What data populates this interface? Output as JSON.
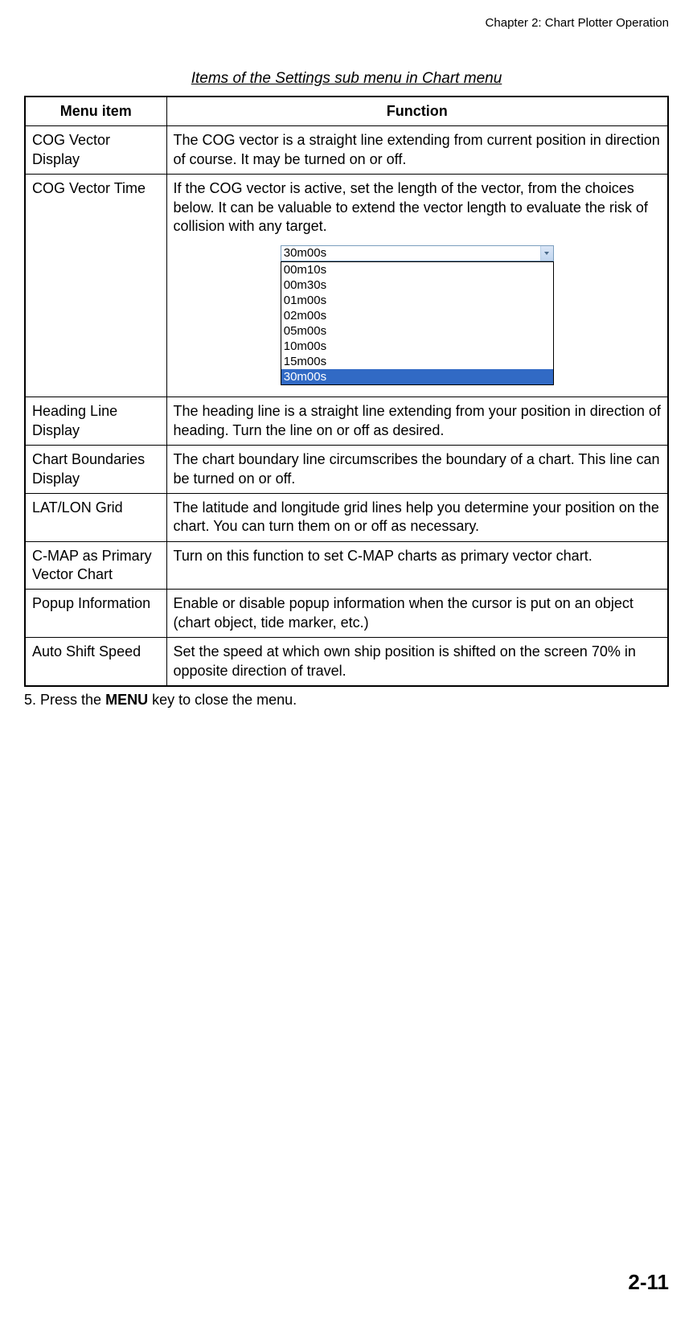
{
  "header": {
    "chapter": "Chapter 2: Chart Plotter Operation"
  },
  "table_title": "Items of the Settings sub menu in Chart menu",
  "columns": {
    "menu": "Menu item",
    "function": "Function"
  },
  "rows": [
    {
      "menu": "COG Vector Display",
      "function": "The COG vector is a straight line extending from current position in direction of course. It may be turned on or off."
    },
    {
      "menu": "COG Vector Time",
      "function": "If the COG vector is active, set the length of the vector, from the choices below. It can be valuable to extend the vector length to evaluate the risk of collision with any target."
    },
    {
      "menu": "Heading Line Display",
      "function": "The heading line is a straight line extending from your position in direction of heading. Turn the line on or off as desired."
    },
    {
      "menu": "Chart Boundaries Display",
      "function": "The chart boundary line circumscribes the boundary of a chart. This line can be turned on or off."
    },
    {
      "menu": "LAT/LON Grid",
      "function": "The latitude and longitude grid lines help you determine your position on the chart. You can turn them on or off as necessary."
    },
    {
      "menu": "C-MAP as Primary Vector Chart",
      "function": "Turn on this function to set C-MAP charts as primary vector chart."
    },
    {
      "menu": "Popup Information",
      "function": "Enable or disable popup information when the cursor is put on an object (chart object, tide marker, etc.)"
    },
    {
      "menu": "Auto Shift Speed",
      "function": "Set the speed at which own ship position is shifted on the screen 70% in opposite direction of travel."
    }
  ],
  "dropdown": {
    "selected": "30m00s",
    "options": [
      "00m10s",
      "00m30s",
      "01m00s",
      "02m00s",
      "05m00s",
      "10m00s",
      "15m00s",
      "30m00s"
    ],
    "highlight_index": 7,
    "colors": {
      "highlight_bg": "#316ac5",
      "highlight_fg": "#ffffff",
      "border": "#7b9ebd"
    }
  },
  "step": {
    "number": "5.",
    "pre": "Press the ",
    "bold": "MENU",
    "post": " key to close the menu."
  },
  "page_number": "2-11",
  "colors": {
    "text": "#000000",
    "background": "#ffffff",
    "table_border": "#000000"
  },
  "fonts": {
    "body_pt": 18,
    "title_pt": 19,
    "header_pt": 15,
    "pagenum_pt": 26
  }
}
